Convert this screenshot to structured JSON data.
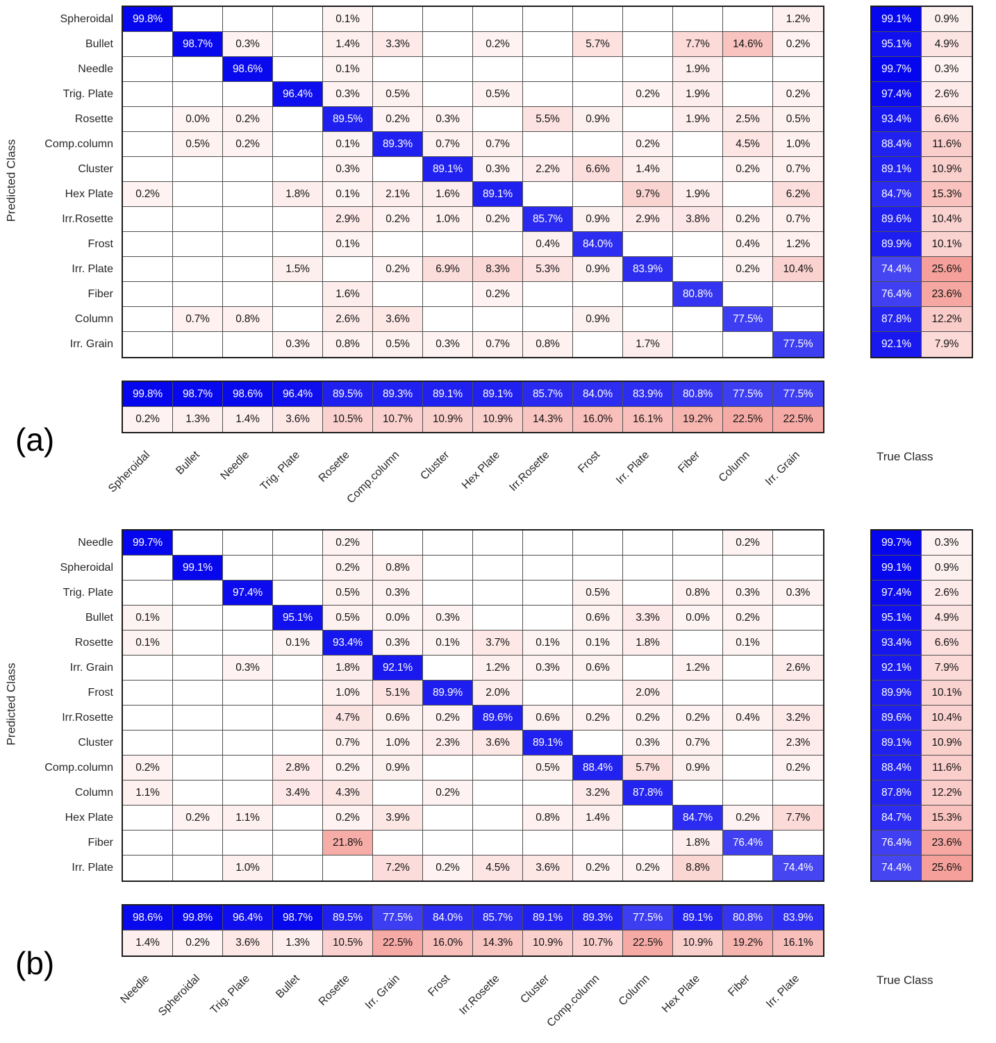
{
  "figure": {
    "panel_a_letter": "(a)",
    "panel_b_letter": "(b)",
    "xlabel": "True Class",
    "ylabel": "Predicted Class"
  },
  "colors": {
    "diag_blue": "#0505EE",
    "off_diag_pink": "#F5A09A",
    "grid_line": "#4f4f4f",
    "outer_border": "#1c1c1c"
  },
  "chart_data": [
    {
      "type": "heatmap",
      "panel": "(a)",
      "xlabel": "True Class",
      "ylabel": "Predicted Class",
      "classes": [
        "Spheroidal",
        "Bullet",
        "Needle",
        "Trig. Plate",
        "Rosette",
        "Comp.column",
        "Cluster",
        "Hex Plate",
        "Irr.Rosette",
        "Frost",
        "Irr. Plate",
        "Fiber",
        "Column",
        "Irr. Grain"
      ],
      "matrix": [
        [
          99.8,
          null,
          null,
          null,
          0.1,
          null,
          null,
          null,
          null,
          null,
          null,
          null,
          null,
          1.2
        ],
        [
          null,
          98.7,
          0.3,
          null,
          1.4,
          3.3,
          null,
          0.2,
          null,
          5.7,
          null,
          7.7,
          14.6,
          0.2
        ],
        [
          null,
          null,
          98.6,
          null,
          0.1,
          null,
          null,
          null,
          null,
          null,
          null,
          1.9,
          null,
          null
        ],
        [
          null,
          null,
          null,
          96.4,
          0.3,
          0.5,
          null,
          0.5,
          null,
          null,
          0.2,
          1.9,
          null,
          0.2
        ],
        [
          null,
          0.0,
          0.2,
          null,
          89.5,
          0.2,
          0.3,
          null,
          5.5,
          0.9,
          null,
          1.9,
          2.5,
          0.5
        ],
        [
          null,
          0.5,
          0.2,
          null,
          0.1,
          89.3,
          0.7,
          0.7,
          null,
          null,
          0.2,
          null,
          4.5,
          1.0
        ],
        [
          null,
          null,
          null,
          null,
          0.3,
          null,
          89.1,
          0.3,
          2.2,
          6.6,
          1.4,
          null,
          0.2,
          0.7
        ],
        [
          0.2,
          null,
          null,
          1.8,
          0.1,
          2.1,
          1.6,
          89.1,
          null,
          null,
          9.7,
          1.9,
          null,
          6.2
        ],
        [
          null,
          null,
          null,
          null,
          2.9,
          0.2,
          1.0,
          0.2,
          85.7,
          0.9,
          2.9,
          3.8,
          0.2,
          0.7
        ],
        [
          null,
          null,
          null,
          null,
          0.1,
          null,
          null,
          null,
          0.4,
          84.0,
          null,
          null,
          0.4,
          1.2
        ],
        [
          null,
          null,
          null,
          1.5,
          null,
          0.2,
          6.9,
          8.3,
          5.3,
          0.9,
          83.9,
          null,
          0.2,
          10.4
        ],
        [
          null,
          null,
          null,
          null,
          1.6,
          null,
          null,
          0.2,
          null,
          null,
          null,
          80.8,
          null,
          null
        ],
        [
          null,
          0.7,
          0.8,
          null,
          2.6,
          3.6,
          null,
          null,
          null,
          0.9,
          null,
          null,
          77.5,
          null
        ],
        [
          null,
          null,
          null,
          0.3,
          0.8,
          0.5,
          0.3,
          0.7,
          0.8,
          null,
          1.7,
          null,
          null,
          77.5
        ]
      ],
      "row_summary": [
        [
          99.1,
          0.9
        ],
        [
          95.1,
          4.9
        ],
        [
          99.7,
          0.3
        ],
        [
          97.4,
          2.6
        ],
        [
          93.4,
          6.6
        ],
        [
          88.4,
          11.6
        ],
        [
          89.1,
          10.9
        ],
        [
          84.7,
          15.3
        ],
        [
          89.6,
          10.4
        ],
        [
          89.9,
          10.1
        ],
        [
          74.4,
          25.6
        ],
        [
          76.4,
          23.6
        ],
        [
          87.8,
          12.2
        ],
        [
          92.1,
          7.9
        ]
      ],
      "col_summary": [
        [
          99.8,
          98.7,
          98.6,
          96.4,
          89.5,
          89.3,
          89.1,
          89.1,
          85.7,
          84.0,
          83.9,
          80.8,
          77.5,
          77.5
        ],
        [
          0.2,
          1.3,
          1.4,
          3.6,
          10.5,
          10.7,
          10.9,
          10.9,
          14.3,
          16.0,
          16.1,
          19.2,
          22.5,
          22.5
        ]
      ]
    },
    {
      "type": "heatmap",
      "panel": "(b)",
      "xlabel": "True Class",
      "ylabel": "Predicted Class",
      "classes": [
        "Needle",
        "Spheroidal",
        "Trig. Plate",
        "Bullet",
        "Rosette",
        "Irr. Grain",
        "Frost",
        "Irr.Rosette",
        "Cluster",
        "Comp.column",
        "Column",
        "Hex Plate",
        "Fiber",
        "Irr. Plate"
      ],
      "matrix": [
        [
          99.7,
          null,
          null,
          null,
          0.2,
          null,
          null,
          null,
          null,
          null,
          null,
          null,
          0.2,
          null
        ],
        [
          null,
          99.1,
          null,
          null,
          0.2,
          0.8,
          null,
          null,
          null,
          null,
          null,
          null,
          null,
          null
        ],
        [
          null,
          null,
          97.4,
          null,
          0.5,
          0.3,
          null,
          null,
          null,
          0.5,
          null,
          0.8,
          0.3,
          0.3
        ],
        [
          0.1,
          null,
          null,
          95.1,
          0.5,
          0.0,
          0.3,
          null,
          null,
          0.6,
          3.3,
          0.0,
          0.2,
          null
        ],
        [
          0.1,
          null,
          null,
          0.1,
          93.4,
          0.3,
          0.1,
          3.7,
          0.1,
          0.1,
          1.8,
          null,
          0.1,
          null
        ],
        [
          null,
          null,
          0.3,
          null,
          1.8,
          92.1,
          null,
          1.2,
          0.3,
          0.6,
          null,
          1.2,
          null,
          2.6
        ],
        [
          null,
          null,
          null,
          null,
          1.0,
          5.1,
          89.9,
          2.0,
          null,
          null,
          2.0,
          null,
          null,
          null
        ],
        [
          null,
          null,
          null,
          null,
          4.7,
          0.6,
          0.2,
          89.6,
          0.6,
          0.2,
          0.2,
          0.2,
          0.4,
          3.2
        ],
        [
          null,
          null,
          null,
          null,
          0.7,
          1.0,
          2.3,
          3.6,
          89.1,
          null,
          0.3,
          0.7,
          null,
          2.3
        ],
        [
          0.2,
          null,
          null,
          2.8,
          0.2,
          0.9,
          null,
          null,
          0.5,
          88.4,
          5.7,
          0.9,
          null,
          0.2
        ],
        [
          1.1,
          null,
          null,
          3.4,
          4.3,
          null,
          0.2,
          null,
          null,
          3.2,
          87.8,
          null,
          null,
          null
        ],
        [
          null,
          0.2,
          1.1,
          null,
          0.2,
          3.9,
          null,
          null,
          0.8,
          1.4,
          null,
          84.7,
          0.2,
          7.7
        ],
        [
          null,
          null,
          null,
          null,
          21.8,
          null,
          null,
          null,
          null,
          null,
          null,
          1.8,
          76.4,
          null
        ],
        [
          null,
          null,
          1.0,
          null,
          null,
          7.2,
          0.2,
          4.5,
          3.6,
          0.2,
          0.2,
          8.8,
          null,
          74.4
        ]
      ],
      "row_summary": [
        [
          99.7,
          0.3
        ],
        [
          99.1,
          0.9
        ],
        [
          97.4,
          2.6
        ],
        [
          95.1,
          4.9
        ],
        [
          93.4,
          6.6
        ],
        [
          92.1,
          7.9
        ],
        [
          89.9,
          10.1
        ],
        [
          89.6,
          10.4
        ],
        [
          89.1,
          10.9
        ],
        [
          88.4,
          11.6
        ],
        [
          87.8,
          12.2
        ],
        [
          84.7,
          15.3
        ],
        [
          76.4,
          23.6
        ],
        [
          74.4,
          25.6
        ]
      ],
      "col_summary": [
        [
          98.6,
          99.8,
          96.4,
          98.7,
          89.5,
          77.5,
          84.0,
          85.7,
          89.1,
          89.3,
          77.5,
          89.1,
          80.8,
          83.9
        ],
        [
          1.4,
          0.2,
          3.6,
          1.3,
          10.5,
          22.5,
          16.0,
          14.3,
          10.9,
          10.7,
          22.5,
          10.9,
          19.2,
          16.1
        ]
      ]
    }
  ]
}
